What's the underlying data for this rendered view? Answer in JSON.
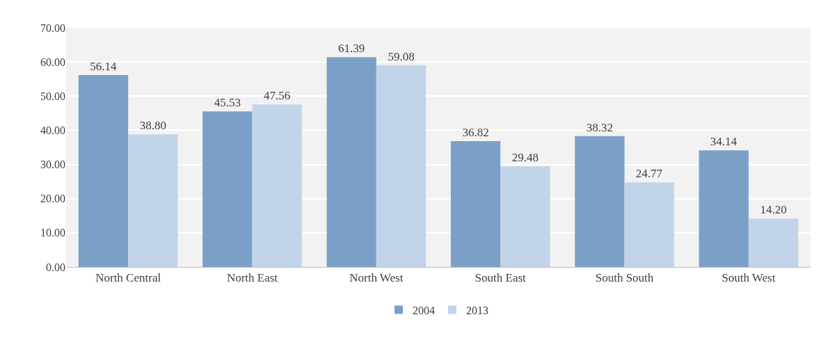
{
  "chart_data": {
    "type": "bar",
    "categories": [
      "North Central",
      "North East",
      "North West",
      "South East",
      "South South",
      "South West"
    ],
    "series": [
      {
        "name": "2004",
        "color": "#7ba0c8",
        "values": [
          56.14,
          45.53,
          61.39,
          36.82,
          38.32,
          34.14
        ],
        "value_labels": [
          "56.14",
          "45.53",
          "61.39",
          "36.82",
          "38.32",
          "34.14"
        ]
      },
      {
        "name": "2013",
        "color": "#c2d4ea",
        "values": [
          38.8,
          47.56,
          59.08,
          29.48,
          24.77,
          14.2
        ],
        "value_labels": [
          "38.80",
          "47.56",
          "59.08",
          "29.48",
          "24.77",
          "14.20"
        ]
      }
    ],
    "ylim": [
      0,
      70
    ],
    "yticks": [
      {
        "value": 0,
        "label": "0.00"
      },
      {
        "value": 10,
        "label": "10.00"
      },
      {
        "value": 20,
        "label": "20.00"
      },
      {
        "value": 30,
        "label": "30.00"
      },
      {
        "value": 40,
        "label": "40.00"
      },
      {
        "value": 50,
        "label": "50.00"
      },
      {
        "value": 60,
        "label": "60.00"
      },
      {
        "value": 70,
        "label": "70.00"
      }
    ],
    "grid": "y",
    "legend": "bottom"
  }
}
